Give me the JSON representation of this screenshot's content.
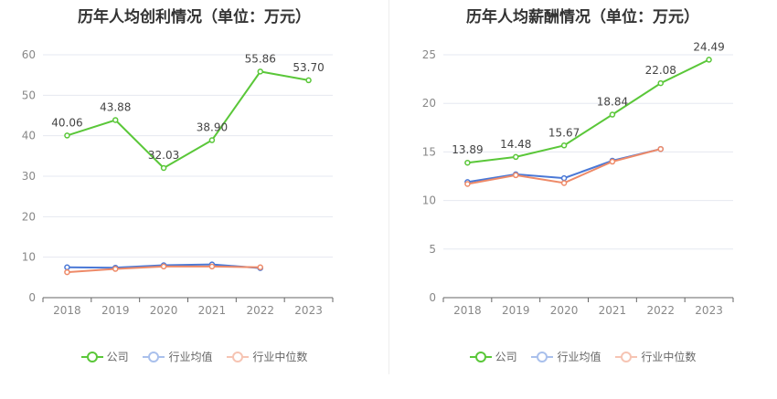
{
  "colors": {
    "company": "#5ac739",
    "industry_avg": "#4a78d6",
    "industry_median": "#ee8a68"
  },
  "legend": {
    "company": "公司",
    "industry_avg": "行业均值",
    "industry_median": "行业中位数"
  },
  "chart_data": [
    {
      "type": "line",
      "title": "历年人均创利情况（单位：万元）",
      "categories": [
        "2018",
        "2019",
        "2020",
        "2021",
        "2022",
        "2023"
      ],
      "ylim": [
        0,
        60
      ],
      "yticks": [
        0,
        10,
        20,
        30,
        40,
        50,
        60
      ],
      "grid": true,
      "legend_position": "bottom",
      "series": [
        {
          "name": "公司",
          "key": "company",
          "values": [
            40.06,
            43.88,
            32.03,
            38.9,
            55.86,
            53.7
          ],
          "labels": [
            "40.06",
            "43.88",
            "32.03",
            "38.90",
            "55.86",
            "53.70"
          ]
        },
        {
          "name": "行业均值",
          "key": "industry_avg",
          "values": [
            7.5,
            7.4,
            8.0,
            8.2,
            7.3,
            null
          ]
        },
        {
          "name": "行业中位数",
          "key": "industry_median",
          "values": [
            6.3,
            7.1,
            7.7,
            7.7,
            7.5,
            null
          ]
        }
      ]
    },
    {
      "type": "line",
      "title": "历年人均薪酬情况（单位：万元）",
      "categories": [
        "2018",
        "2019",
        "2020",
        "2021",
        "2022",
        "2023"
      ],
      "ylim": [
        0,
        25
      ],
      "yticks": [
        0,
        5,
        10,
        15,
        20,
        25
      ],
      "grid": true,
      "legend_position": "bottom",
      "series": [
        {
          "name": "公司",
          "key": "company",
          "values": [
            13.89,
            14.48,
            15.67,
            18.84,
            22.08,
            24.49
          ],
          "labels": [
            "13.89",
            "14.48",
            "15.67",
            "18.84",
            "22.08",
            "24.49"
          ]
        },
        {
          "name": "行业均值",
          "key": "industry_avg",
          "values": [
            11.9,
            12.7,
            12.3,
            14.1,
            15.3,
            null
          ]
        },
        {
          "name": "行业中位数",
          "key": "industry_median",
          "values": [
            11.7,
            12.6,
            11.8,
            14.0,
            15.3,
            null
          ]
        }
      ]
    }
  ]
}
